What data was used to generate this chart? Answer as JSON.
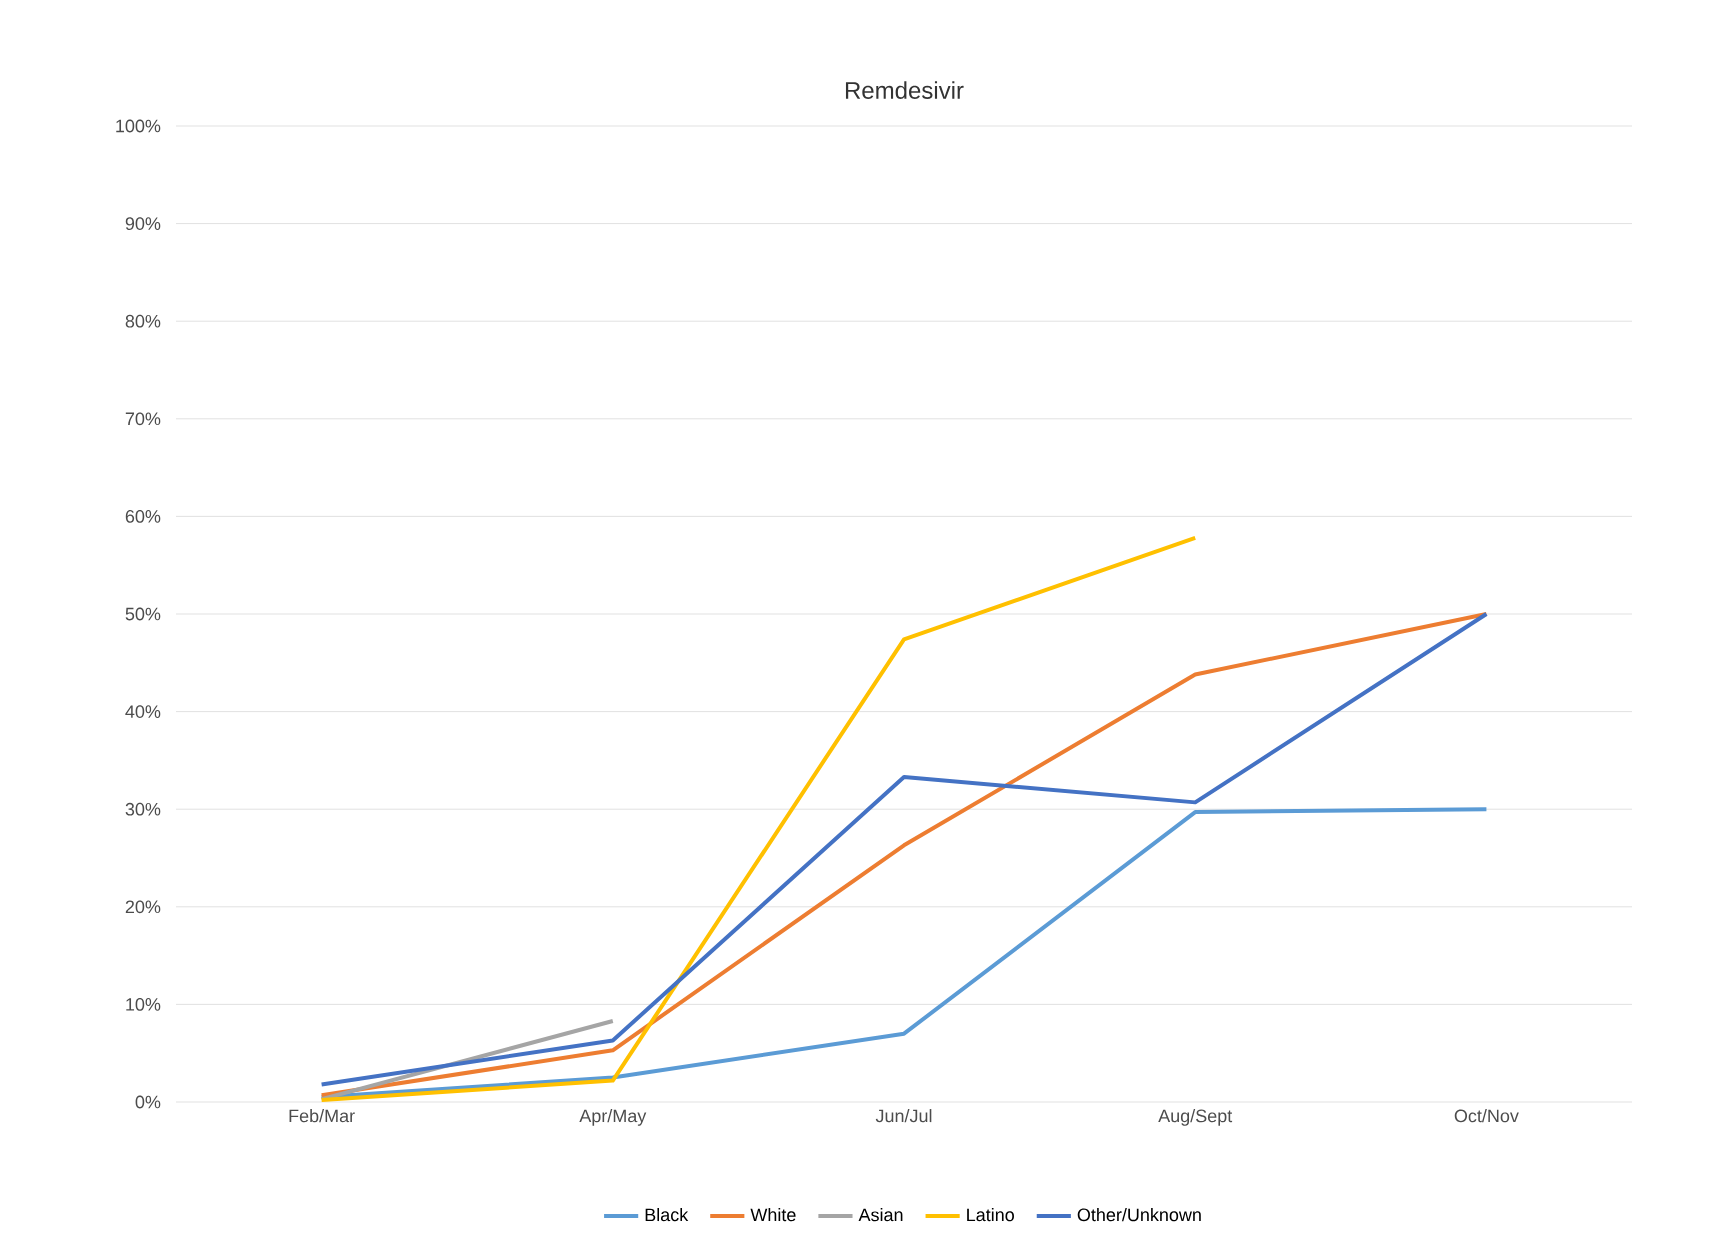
{
  "chart_data": {
    "type": "line",
    "title": "Remdesivir",
    "categories": [
      "Feb/Mar",
      "Apr/May",
      "Jun/Jul",
      "Aug/Sept",
      "Oct/Nov"
    ],
    "series": [
      {
        "name": "Black",
        "color": "#5b9bd5",
        "values": [
          0.5,
          2.5,
          7,
          29.7,
          30
        ]
      },
      {
        "name": "White",
        "color": "#ed7d31",
        "values": [
          0.7,
          5.3,
          26.3,
          43.8,
          50
        ]
      },
      {
        "name": "Asian",
        "color": "#a5a5a5",
        "values": [
          0.3,
          8.3,
          null,
          null,
          null
        ]
      },
      {
        "name": "Latino",
        "color": "#ffc000",
        "values": [
          0.2,
          2.2,
          47.4,
          57.8,
          null
        ]
      },
      {
        "name": "Other/Unknown",
        "color": "#4472c4",
        "values": [
          1.8,
          6.3,
          33.3,
          30.7,
          50
        ]
      }
    ],
    "ylim": [
      0,
      100
    ],
    "yticks": [
      {
        "value": 0,
        "label": "0%"
      },
      {
        "value": 10,
        "label": "10%"
      },
      {
        "value": 20,
        "label": "20%"
      },
      {
        "value": 30,
        "label": "30%"
      },
      {
        "value": 40,
        "label": "40%"
      },
      {
        "value": 50,
        "label": "50%"
      },
      {
        "value": 60,
        "label": "60%"
      },
      {
        "value": 70,
        "label": "70%"
      },
      {
        "value": 80,
        "label": "80%"
      },
      {
        "value": 90,
        "label": "90%"
      },
      {
        "value": 100,
        "label": "100%"
      }
    ],
    "grid": "y",
    "legend": "bottom",
    "marker": "none",
    "line_style": "solid"
  }
}
